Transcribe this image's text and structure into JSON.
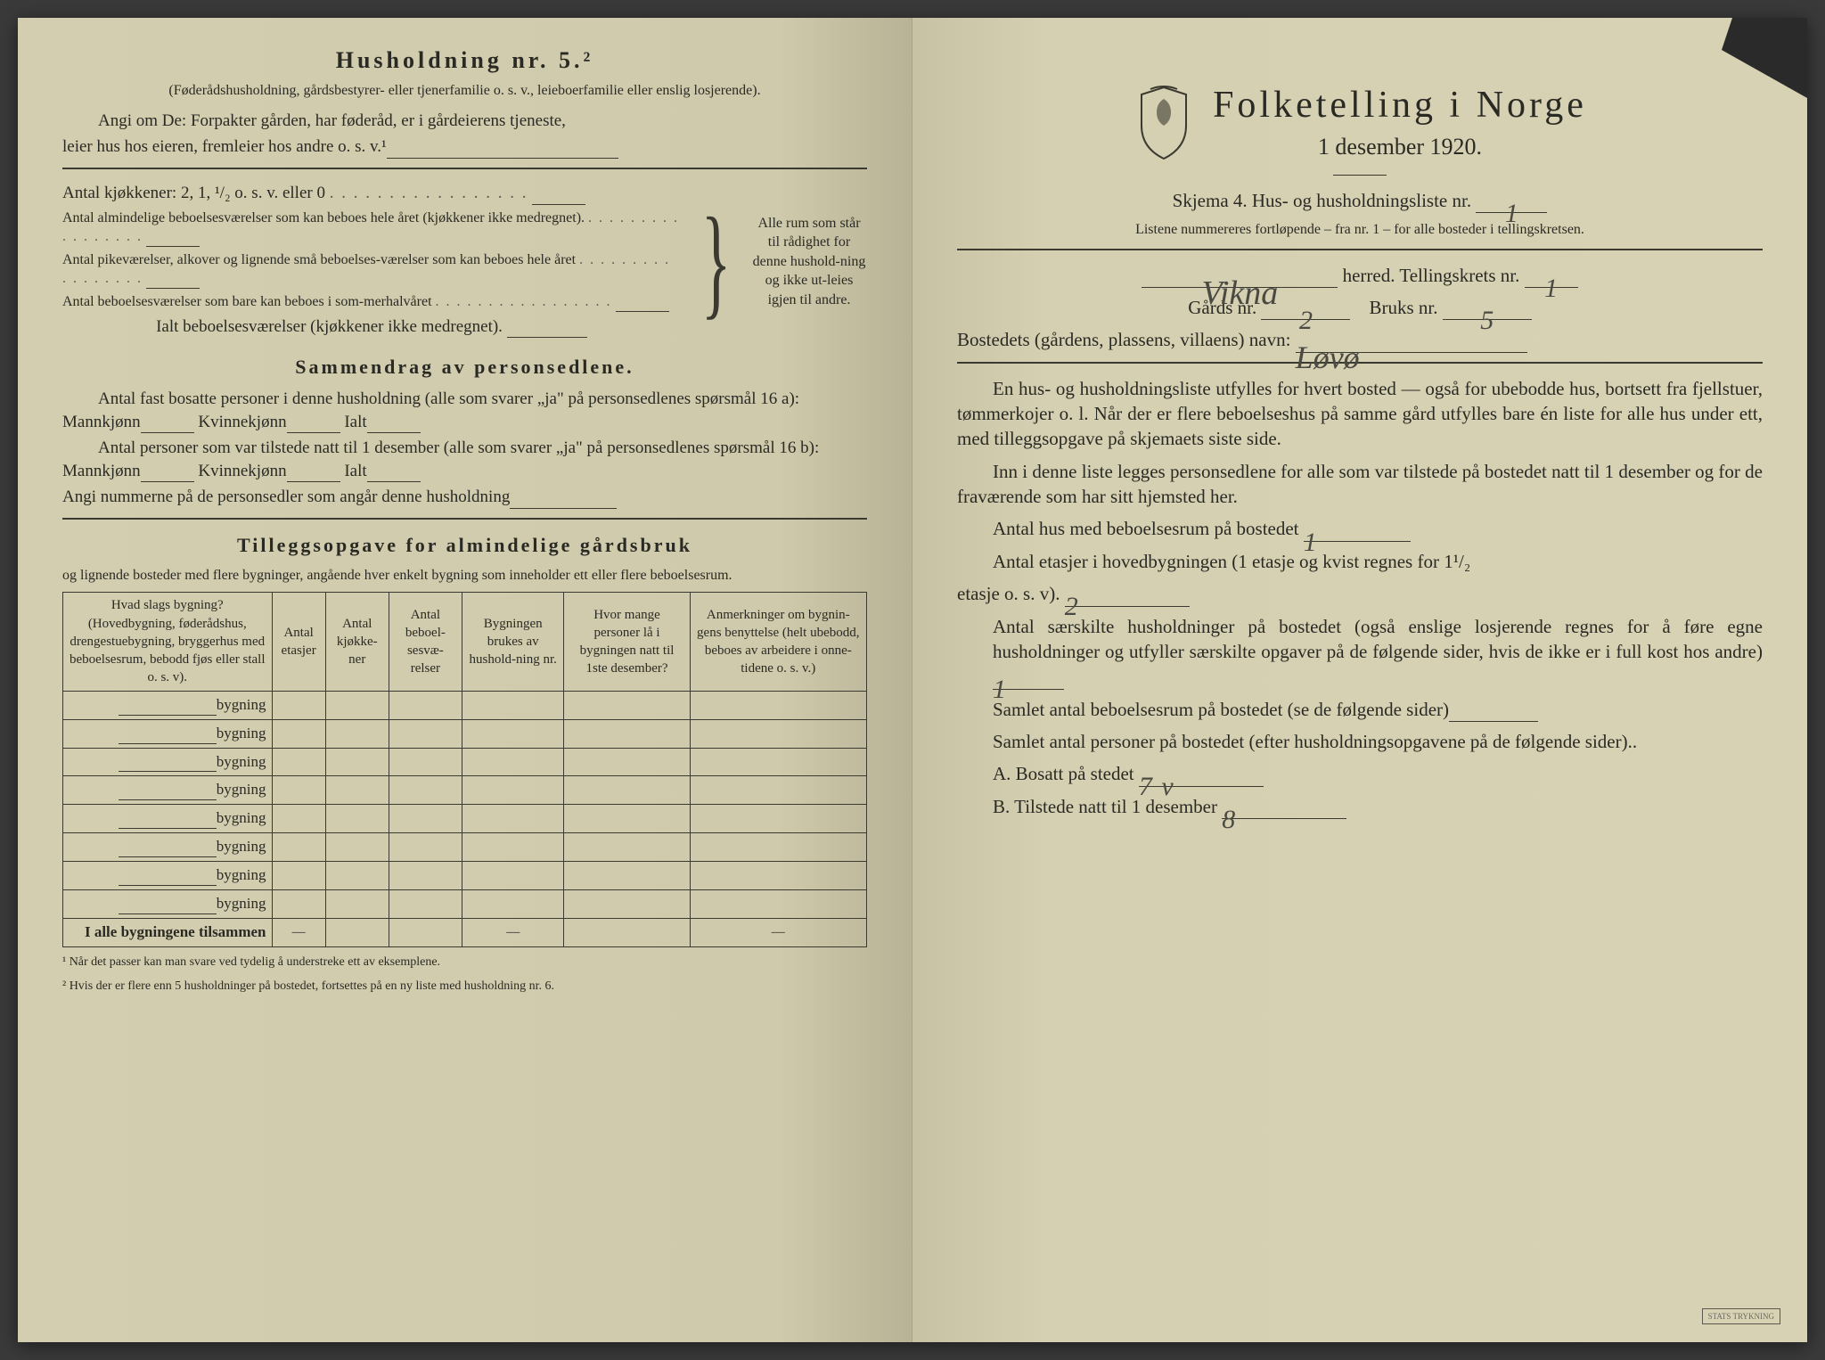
{
  "colors": {
    "paper": "#d4ceb0",
    "paper_right": "#d8d2b4",
    "ink": "#2a2a24",
    "handwriting": "#4a4a42",
    "shadow": "#3a3a3a"
  },
  "left": {
    "heading": "Husholdning nr. 5.²",
    "sub1": "(Føderådshusholdning, gårdsbestyrer- eller tjenerfamilie o. s. v., leieboerfamilie eller enslig losjerende).",
    "para1a": "Angi om De: Forpakter gården, har føderåd, er i gårdeierens tjeneste,",
    "para1b": "leier hus hos eieren, fremleier hos andre o. s. v.¹",
    "kjokken_line": "Antal kjøkkener: 2, 1, ¹/₂ o. s. v. eller 0",
    "room_a": "Antal almindelige beboelsesværelser som kan beboes hele året (kjøkkener ikke medregnet).",
    "room_b": "Antal pikeværelser, alkover og lignende små beboelses-værelser som kan beboes hele året",
    "room_c": "Antal beboelsesværelser som bare kan beboes i som-merhalvåret",
    "ialt_line": "Ialt beboelsesværelser  (kjøkkener ikke medregnet).",
    "brace_text": "Alle rum som står til rådighet for denne hushold-ning og ikke ut-leies igjen til andre.",
    "sammendrag_h": "Sammendrag av personsedlene.",
    "sam_a": "Antal fast bosatte personer i denne husholdning (alle som svarer „ja\" på personsedlenes spørsmål 16 a): Mannkjønn",
    "kvinne": "Kvinnekjønn",
    "ialt": "Ialt",
    "sam_b": "Antal personer som var tilstede natt til 1 desember (alle som svarer „ja\" på personsedlenes spørsmål 16 b): Mannkjønn",
    "angi_num": "Angi nummerne på de personsedler som angår denne husholdning",
    "tillegg_h": "Tilleggsopgave for almindelige gårdsbruk",
    "tillegg_sub": "og lignende bosteder med flere bygninger, angående hver enkelt bygning som inneholder ett eller flere beboelsesrum.",
    "table": {
      "headers": [
        "Hvad slags bygning?\n(Hovedbygning, føderådshus, drengestuebygning, bryggerhus med beboelsesrum, bebodd fjøs eller stall o. s. v).",
        "Antal etasjer",
        "Antal kjøkke-ner",
        "Antal beboel-sesvæ-relser",
        "Bygningen brukes av hushold-ning nr.",
        "Hvor mange personer lå i bygningen natt til 1ste desember?",
        "Anmerkninger om bygnin-gens benyttelse (helt ubebodd, beboes av arbeidere i onne-tidene o. s. v.)"
      ],
      "row_label": "bygning",
      "row_count": 8,
      "total_label": "I alle bygningene tilsammen"
    },
    "footnote1": "¹  Når det passer kan man svare ved tydelig å understreke ett av eksemplene.",
    "footnote2": "²  Hvis der er flere enn 5 husholdninger på bostedet, fortsettes på en ny liste med husholdning nr. 6."
  },
  "right": {
    "title": "Folketelling  i  Norge",
    "date": "1 desember 1920.",
    "skjema": "Skjema 4.   Hus- og husholdningsliste nr.",
    "skjema_val": "1",
    "listene": "Listene nummereres fortløpende – fra nr. 1 – for alle bosteder i tellingskretsen.",
    "herred_val": "Vikna",
    "herred_lbl": "herred.   Tellingskrets nr.",
    "krets_val": "1",
    "gard_lbl": "Gårds nr.",
    "gard_val": "2",
    "bruk_lbl": "Bruks nr.",
    "bruk_val": "5",
    "bosted_lbl": "Bostedets (gårdens, plassens, villaens) navn:",
    "bosted_val": "Løvø",
    "para1": "En hus- og husholdningsliste utfylles for hvert bosted — også for ubebodde hus, bortsett fra fjellstuer, tømmerkojer o. l.  Når der er flere beboelseshus på samme gård utfylles bare én liste for alle hus under ett, med tilleggsopgave på skjemaets siste side.",
    "para2": "Inn i denne liste legges personsedlene for alle som var tilstede på bostedet natt til 1 desember og for de fraværende som har sitt hjemsted her.",
    "q1": "Antal hus med beboelsesrum på bostedet",
    "q1_val": "1",
    "q2a": "Antal etasjer i hovedbygningen (1 etasje og kvist regnes for 1¹/₂",
    "q2b": "etasje o. s. v).",
    "q2_val": "2",
    "q3": "Antal særskilte husholdninger på bostedet (også enslige losjerende regnes for å føre egne husholdninger og utfyller særskilte opgaver på de følgende sider, hvis de ikke er i full kost hos andre)",
    "q3_val": "1",
    "q4": "Samlet antal beboelsesrum på bostedet (se de følgende sider)",
    "q5": "Samlet antal personer på bostedet (efter husholdningsopgavene på de følgende sider)..",
    "qA": "A.  Bosatt på stedet",
    "qA_val": "7",
    "qA_extra": "v",
    "qB": "B.  Tilstede natt til 1 desember",
    "qB_val": "8",
    "stamp": "STATS TRYKNING"
  }
}
